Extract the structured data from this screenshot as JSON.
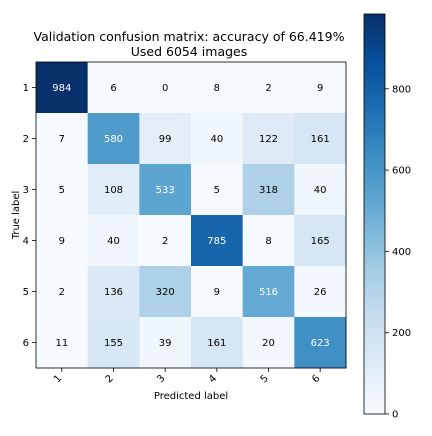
{
  "chart_data": {
    "type": "heatmap",
    "title_line1": "Validation confusion matrix: accuracy of 66.419%",
    "title_line2": "Used 6054 images",
    "xlabel": "Predicted label",
    "ylabel": "True label",
    "x_categories": [
      "1",
      "2",
      "3",
      "4",
      "5",
      "6"
    ],
    "y_categories": [
      "1",
      "2",
      "3",
      "4",
      "5",
      "6"
    ],
    "matrix": [
      [
        984,
        6,
        0,
        8,
        2,
        9
      ],
      [
        7,
        580,
        99,
        40,
        122,
        161
      ],
      [
        5,
        108,
        533,
        5,
        318,
        40
      ],
      [
        9,
        40,
        2,
        785,
        8,
        165
      ],
      [
        2,
        136,
        320,
        9,
        516,
        26
      ],
      [
        11,
        155,
        39,
        161,
        20,
        623
      ]
    ],
    "colormap": "Blues",
    "color_range": [
      0,
      984
    ],
    "colorbar_ticks": [
      0,
      200,
      400,
      600,
      800
    ]
  }
}
